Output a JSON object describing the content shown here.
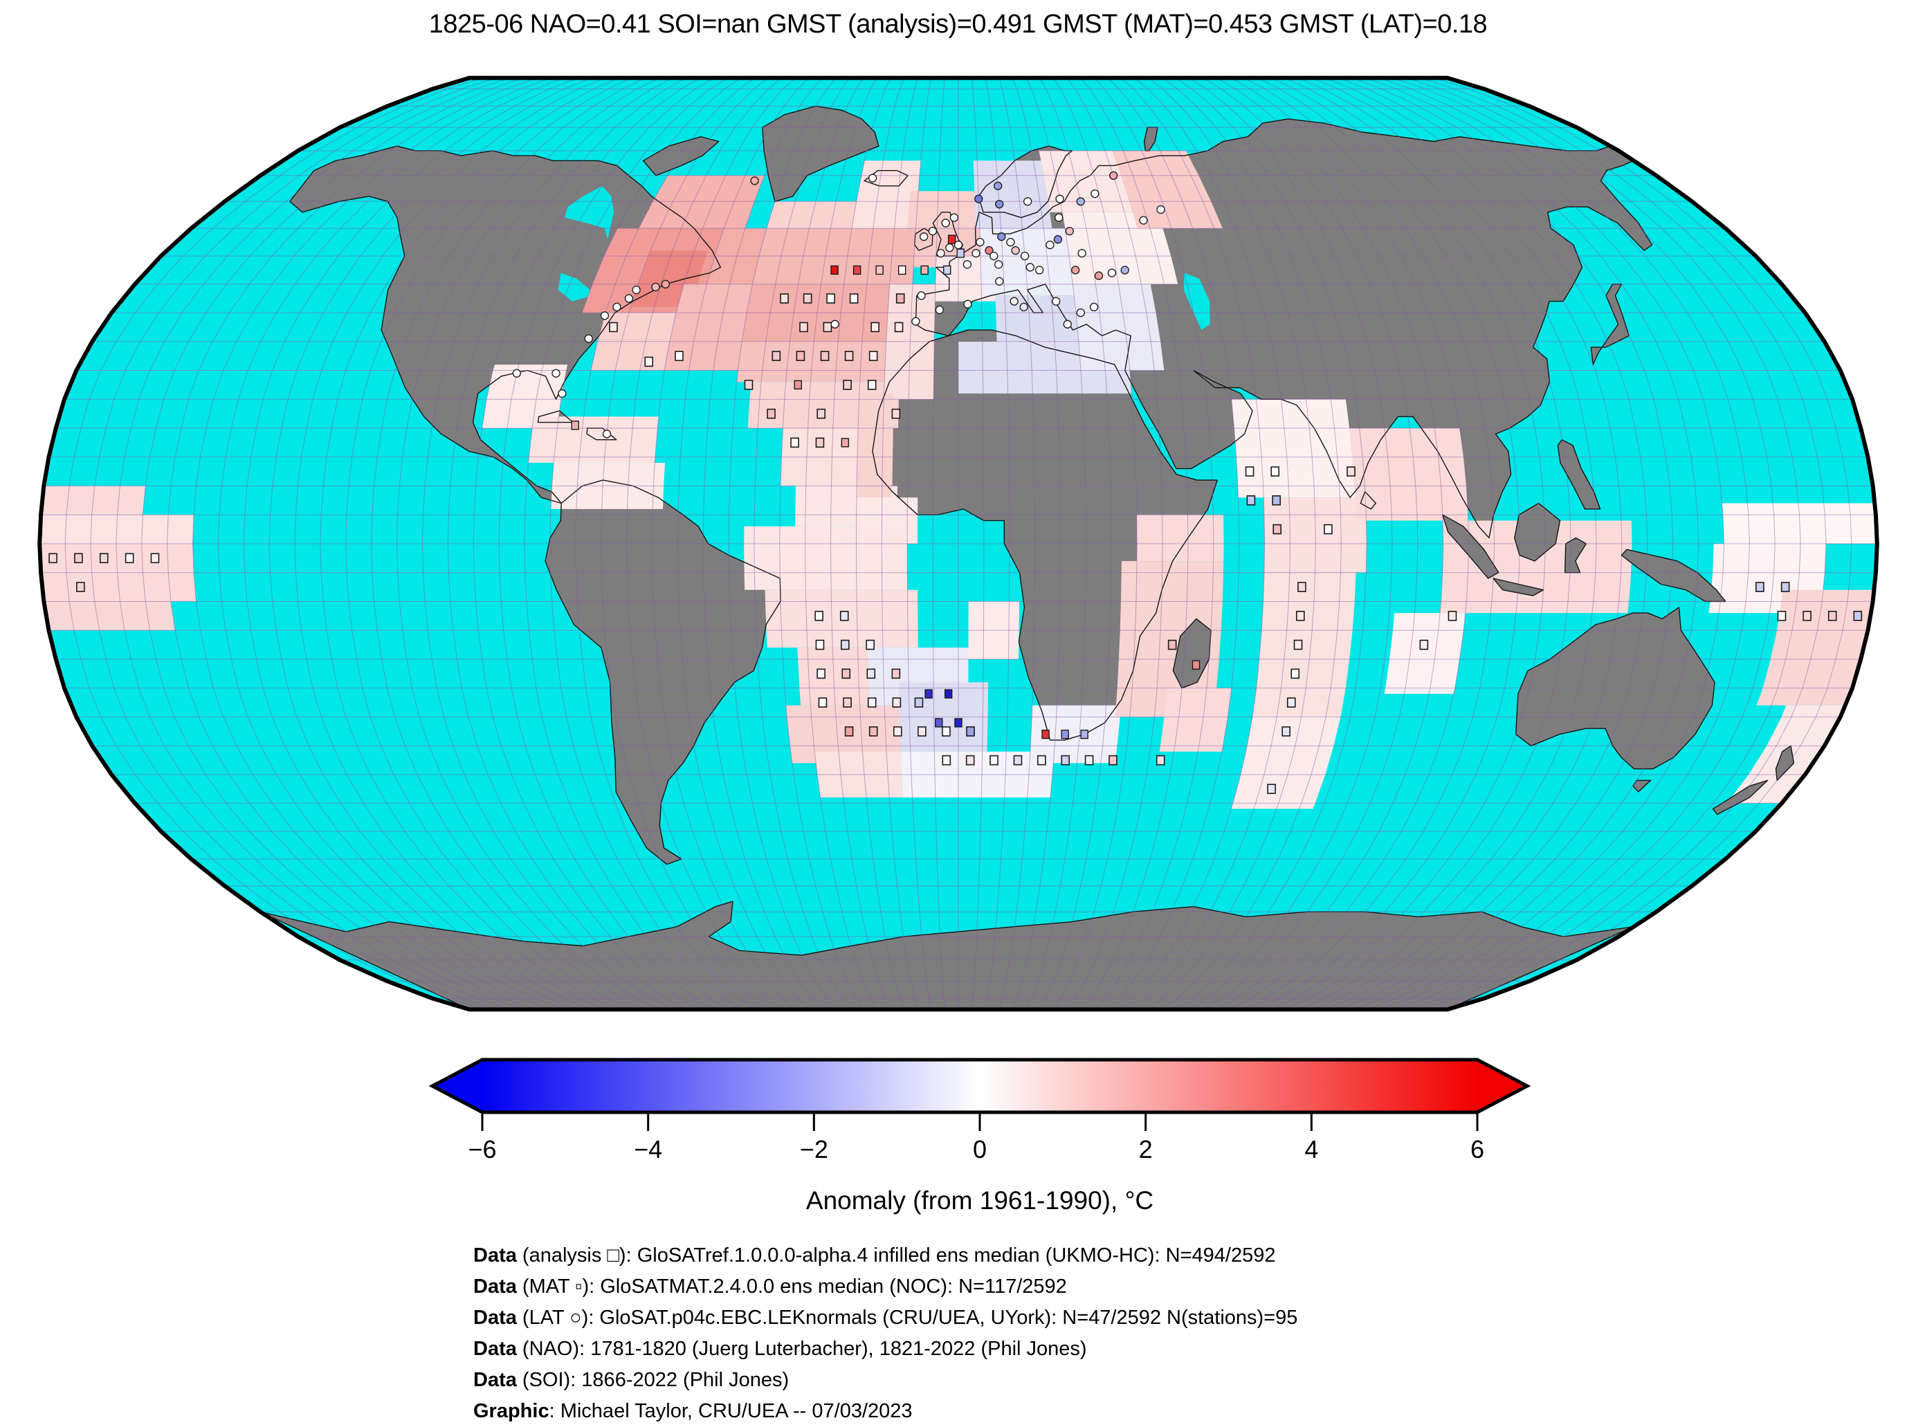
{
  "title": "1825-06 NAO=0.41 SOI=nan GMST (analysis)=0.491 GMST (MAT)=0.453 GMST (LAT)=0.18",
  "colorbar": {
    "label": "Anomaly (from 1961-1990), °C",
    "tick_labels": [
      "−6",
      "−4",
      "−2",
      "0",
      "2",
      "4",
      "6"
    ],
    "tick_values": [
      -6,
      -4,
      -2,
      0,
      2,
      4,
      6
    ],
    "min": -6,
    "max": 6,
    "left_color": "#0000f2",
    "mid_color": "#ffffff",
    "right_color": "#f20000"
  },
  "captions": [
    {
      "prefix": "Data",
      "text": " (analysis □): GloSATref.1.0.0.0-alpha.4 infilled ens median (UKMO-HC): N=494/2592"
    },
    {
      "prefix": "Data",
      "text": " (MAT ▫): GloSATMAT.2.4.0.0 ens median (NOC): N=117/2592"
    },
    {
      "prefix": "Data",
      "text": " (LAT ○): GloSAT.p04c.EBC.LEKnormals (CRU/UEA, UYork): N=47/2592 N(stations)=95"
    },
    {
      "prefix": "Data",
      "text": " (NAO): 1781-1820 (Juerg Luterbacher), 1821-2022 (Phil Jones)"
    },
    {
      "prefix": "Data",
      "text": " (SOI): 1866-2022 (Phil Jones)"
    },
    {
      "prefix": "Graphic",
      "text": ": Michael Taylor, CRU/UEA -- 07/03/2023"
    }
  ],
  "map": {
    "projection": "robinson",
    "grid_resolution_deg": 5,
    "colors": {
      "ocean": "#00e7e7",
      "land": "#7d7d7d",
      "coast": "#141414",
      "border": "#000000",
      "graticule": "#8a55aa"
    },
    "cells": [
      [
        -75,
        55,
        -50,
        65,
        "#f4b3af"
      ],
      [
        -80,
        40,
        -55,
        55,
        "#f09d98"
      ],
      [
        -70,
        41,
        -57,
        51,
        "#ec8781"
      ],
      [
        -75,
        30,
        -60,
        40,
        "#f9d2cf"
      ],
      [
        -60,
        30,
        -45,
        45,
        "#f5bebb"
      ],
      [
        -55,
        45,
        -45,
        55,
        "#f3aeaa"
      ],
      [
        -45,
        45,
        -10,
        55,
        "#f4bab6"
      ],
      [
        -45,
        55,
        -25,
        60,
        "#f8d3d0"
      ],
      [
        -45,
        35,
        -10,
        45,
        "#f2b0ad"
      ],
      [
        -45,
        28,
        -10,
        35,
        "#f5c3c0"
      ],
      [
        -42,
        20,
        -12,
        28,
        "#f8d6d3"
      ],
      [
        -35,
        10,
        -15,
        20,
        "#fae2df"
      ],
      [
        -32,
        3,
        -12,
        10,
        "#fbe8e6"
      ],
      [
        -95,
        20,
        -80,
        31,
        "#fcebe9"
      ],
      [
        -85,
        14,
        -60,
        22,
        "#fae3e1"
      ],
      [
        -80,
        6,
        -58,
        14,
        "#fbeae8"
      ],
      [
        -15,
        25,
        -5,
        45,
        "#f9dfdd"
      ],
      [
        -25,
        55,
        -10,
        68,
        "#fbe3e1"
      ],
      [
        -10,
        48,
        5,
        58,
        "#f6cac7"
      ],
      [
        -12,
        55,
        4,
        62,
        "#f8d0cd"
      ],
      [
        4,
        55,
        22,
        68,
        "#dcddf1"
      ],
      [
        -5,
        42,
        8,
        50,
        "#fae9e8"
      ],
      [
        5,
        43,
        28,
        55,
        "#edeff8"
      ],
      [
        8,
        30,
        27,
        43,
        "#dbddf1"
      ],
      [
        0,
        26,
        35,
        35,
        "#dfe0f2"
      ],
      [
        25,
        30,
        42,
        45,
        "#e9eaf6"
      ],
      [
        25,
        45,
        48,
        58,
        "#fcf0ee"
      ],
      [
        22,
        58,
        42,
        70,
        "#fbe7e5"
      ],
      [
        42,
        55,
        62,
        70,
        "#f7ccc9"
      ],
      [
        -20,
        8,
        -13,
        26,
        "#f8d4d1"
      ],
      [
        -20,
        0,
        -8,
        8,
        "#fbe9e7"
      ],
      [
        -42,
        -8,
        -10,
        3,
        "#fbe7e5"
      ],
      [
        -38,
        -18,
        -8,
        -8,
        "#fae0de"
      ],
      [
        -32,
        -28,
        -18,
        -18,
        "#f9dbd9"
      ],
      [
        -18,
        -28,
        2,
        -18,
        "#e9eaf7"
      ],
      [
        -12,
        -36,
        6,
        -24,
        "#dddef2"
      ],
      [
        -35,
        -38,
        -12,
        -28,
        "#f7d4d2"
      ],
      [
        -30,
        -44,
        -12,
        -36,
        "#fae2e0"
      ],
      [
        -12,
        -44,
        20,
        -36,
        "#f4f3fa"
      ],
      [
        15,
        -38,
        33,
        -28,
        "#f1f0f9"
      ],
      [
        32,
        -30,
        52,
        -3,
        "#f8d5d2"
      ],
      [
        42,
        -36,
        55,
        -25,
        "#f9dcda"
      ],
      [
        2,
        -20,
        12,
        -10,
        "#fcebe9"
      ],
      [
        35,
        -3,
        52,
        5,
        "#f9dcda"
      ],
      [
        55,
        8,
        78,
        25,
        "#fdf1f0"
      ],
      [
        60,
        -5,
        80,
        8,
        "#fae0de"
      ],
      [
        78,
        4,
        100,
        20,
        "#f9dbd9"
      ],
      [
        60,
        -30,
        78,
        -5,
        "#fae2e0"
      ],
      [
        60,
        -46,
        78,
        -30,
        "#fbeceb"
      ],
      [
        95,
        -12,
        132,
        4,
        "#f9dcda"
      ],
      [
        86,
        -26,
        100,
        -12,
        "#fdf2f1"
      ],
      [
        150,
        0,
        180,
        7,
        "#fdf6f5"
      ],
      [
        148,
        -12,
        170,
        0,
        "#fdf3f2"
      ],
      [
        162,
        -28,
        180,
        -8,
        "#f8d6d4"
      ],
      [
        168,
        -45,
        180,
        -28,
        "#fbe9e8"
      ],
      [
        -180,
        5,
        -160,
        10,
        "#f9dcda"
      ],
      [
        -180,
        0,
        -150,
        5,
        "#fbe4e2"
      ],
      [
        -180,
        -10,
        -150,
        0,
        "#f9dcda"
      ],
      [
        -180,
        -15,
        -155,
        -10,
        "#f8d8d6"
      ]
    ],
    "markers": [
      [
        "m",
        -27.5,
        47.5,
        "#e01414"
      ],
      [
        "m",
        -22.5,
        47.5,
        "#e64646"
      ],
      [
        "m",
        -17.5,
        47.5,
        "#f5c8c8"
      ],
      [
        "m",
        -12.5,
        47.5,
        "#fdf3f3"
      ],
      [
        "m",
        -7.5,
        47.5,
        "#f2b4b4"
      ],
      [
        "m",
        -2.5,
        47.5,
        "#ccd2f0"
      ],
      [
        "m",
        -32.5,
        27.5,
        "#ee9292"
      ],
      [
        "m",
        -22.5,
        17.5,
        "#f0a6a6"
      ],
      [
        "m",
        -76.5,
        20.5,
        "#f2b0b0"
      ],
      [
        "m",
        -1.5,
        53,
        "#e62424"
      ],
      [
        "m",
        0.5,
        50.5,
        "#c6cef0"
      ],
      [
        "m",
        -6,
        -26,
        "#2c2ccd"
      ],
      [
        "m",
        -2,
        -26,
        "#1e1ec8"
      ],
      [
        "m",
        -4,
        -31,
        "#5c5cd8"
      ],
      [
        "m",
        0,
        -31,
        "#2626ca"
      ],
      [
        "m",
        18,
        -33,
        "#e93030"
      ],
      [
        "m",
        22,
        -33,
        "#9098e4"
      ],
      [
        "m",
        26,
        -33,
        "#acb4e9"
      ],
      [
        "m",
        47.5,
        -21,
        "#ee8e8e"
      ],
      [
        "a",
        -37.5,
        42.5,
        "#f6e3e3"
      ],
      [
        "a",
        -32.5,
        42.5,
        "#f3d3d3"
      ],
      [
        "a",
        -27.5,
        42.5,
        "#ffffff"
      ],
      [
        "a",
        -22.5,
        42.5,
        "#fdf8f8"
      ],
      [
        "a",
        -12.5,
        42.5,
        "#f2b2b2"
      ],
      [
        "a",
        -32.5,
        37.5,
        "#f8dcdc"
      ],
      [
        "a",
        -27.5,
        37.5,
        "#f9e0e0"
      ],
      [
        "a",
        -17.5,
        37.5,
        "#fcecec"
      ],
      [
        "a",
        -12.5,
        37.5,
        "#fae7e7"
      ],
      [
        "a",
        -37.5,
        32.5,
        "#f4c6c6"
      ],
      [
        "a",
        -32.5,
        32.5,
        "#f2baba"
      ],
      [
        "a",
        -27.5,
        32.5,
        "#f4c6c6"
      ],
      [
        "a",
        -22.5,
        32.5,
        "#f6d2d2"
      ],
      [
        "a",
        -17.5,
        32.5,
        "#fbf1f1"
      ],
      [
        "a",
        -42.5,
        27.5,
        "#f6d6d6"
      ],
      [
        "a",
        -22.5,
        27.5,
        "#f6d0d0"
      ],
      [
        "a",
        -17.5,
        27.5,
        "#f5f5fc"
      ],
      [
        "a",
        -37.5,
        22.5,
        "#f3c0c0"
      ],
      [
        "a",
        -27.5,
        22.5,
        "#f7d8d8"
      ],
      [
        "a",
        -12.5,
        22.5,
        "#f8dcdc"
      ],
      [
        "a",
        -32.5,
        17.5,
        "#ffffff"
      ],
      [
        "a",
        -27.5,
        17.5,
        "#f5cccc"
      ],
      [
        "a",
        -57.5,
        32.5,
        "#ffffff"
      ],
      [
        "a",
        -63.5,
        31.5,
        "#fdf6f6"
      ],
      [
        "a",
        -72.5,
        37.5,
        "#fbeaea"
      ],
      [
        "a",
        -27.5,
        -12.5,
        "#fbfbff"
      ],
      [
        "a",
        -22.5,
        -12.5,
        "#e6e6f7"
      ],
      [
        "a",
        -27.5,
        -17.5,
        "#ffffff"
      ],
      [
        "a",
        -22.5,
        -17.5,
        "#dedef3"
      ],
      [
        "a",
        -17.5,
        -17.5,
        "#f6f6fd"
      ],
      [
        "a",
        -27.5,
        -22.5,
        "#f8f8fd"
      ],
      [
        "a",
        -22.5,
        -22.5,
        "#f4c2c2"
      ],
      [
        "a",
        -17.5,
        -22.5,
        "#e6e6f6"
      ],
      [
        "a",
        -12.5,
        -22.5,
        "#f7caca"
      ],
      [
        "a",
        -27.5,
        -27.5,
        "#ffffff"
      ],
      [
        "a",
        -22.5,
        -27.5,
        "#f8d2d2"
      ],
      [
        "a",
        -17.5,
        -27.5,
        "#f2f2fb"
      ],
      [
        "a",
        -12.5,
        -27.5,
        "#fbeaea"
      ],
      [
        "a",
        -8,
        -27.5,
        "#c6cbee"
      ],
      [
        "a",
        -22.5,
        -32.5,
        "#f0a2a2"
      ],
      [
        "a",
        -17.5,
        -32.5,
        "#f3baba"
      ],
      [
        "a",
        -12.5,
        -32.5,
        "#fcf0f0"
      ],
      [
        "a",
        -7.5,
        -32.5,
        "#fbe8e8"
      ],
      [
        "a",
        -2.5,
        -32.5,
        "#ffffff"
      ],
      [
        "a",
        2.5,
        -32.5,
        "#9aa2e2"
      ],
      [
        "a",
        -2.5,
        -37.5,
        "#ffffff"
      ],
      [
        "a",
        2.5,
        -37.5,
        "#fae4e4"
      ],
      [
        "a",
        7.5,
        -37.5,
        "#ffffff"
      ],
      [
        "a",
        12.5,
        -37.5,
        "#dde1f4"
      ],
      [
        "a",
        17.5,
        -37.5,
        "#f5f5fc"
      ],
      [
        "a",
        22.5,
        -37.5,
        "#cbd1f0"
      ],
      [
        "a",
        27.5,
        -37.5,
        "#f1f1fa"
      ],
      [
        "a",
        32.5,
        -37.5,
        "#f5c6c6"
      ],
      [
        "a",
        42.5,
        -37.5,
        "#fbe2e2"
      ],
      [
        "a",
        42.5,
        -17.5,
        "#f5bcbc"
      ],
      [
        "a",
        57.5,
        12.5,
        "#fbfbfe"
      ],
      [
        "a",
        62.5,
        12.5,
        "#ffffff"
      ],
      [
        "a",
        77.5,
        12.5,
        "#f9dede"
      ],
      [
        "a",
        57.5,
        7.5,
        "#c2c8ee"
      ],
      [
        "a",
        62.5,
        7.5,
        "#b4bcea"
      ],
      [
        "a",
        62.5,
        2.5,
        "#f3bebe"
      ],
      [
        "a",
        72.5,
        2.5,
        "#f6f6fd"
      ],
      [
        "a",
        67.5,
        -7.5,
        "#f9dada"
      ],
      [
        "a",
        67.5,
        -12.5,
        "#fbe6e6"
      ],
      [
        "a",
        67.5,
        -17.5,
        "#fcecec"
      ],
      [
        "a",
        67.5,
        -22.5,
        "#f7f7fd"
      ],
      [
        "a",
        67.5,
        -27.5,
        "#eaecf8"
      ],
      [
        "a",
        67.5,
        -32.5,
        "#e0e3f5"
      ],
      [
        "a",
        67.5,
        -42.5,
        "#e4e7f6"
      ],
      [
        "a",
        97.5,
        -12.5,
        "#fbe8e8"
      ],
      [
        "a",
        92.5,
        -17.5,
        "#fcefef"
      ],
      [
        "a",
        157.5,
        -7.5,
        "#caceef"
      ],
      [
        "a",
        162.5,
        -7.5,
        "#c6cbee"
      ],
      [
        "a",
        162.5,
        -12.5,
        "#fafafe"
      ],
      [
        "a",
        167.5,
        -12.5,
        "#f7d8d8"
      ],
      [
        "a",
        172.5,
        -12.5,
        "#f5cece"
      ],
      [
        "a",
        177.5,
        -12.5,
        "#c6ccee"
      ],
      [
        "a",
        -177.5,
        -2.5,
        "#f7d6d6"
      ],
      [
        "a",
        -172.5,
        -2.5,
        "#f5cccc"
      ],
      [
        "a",
        -167.5,
        -2.5,
        "#f7d8d8"
      ],
      [
        "a",
        -162.5,
        -2.5,
        "#fafafe"
      ],
      [
        "a",
        -157.5,
        -2.5,
        "#fcf2f2"
      ],
      [
        "a",
        -172.5,
        -7.5,
        "#f6d2d2"
      ],
      [
        "l",
        -8,
        53.5,
        "#ffffff"
      ],
      [
        "l",
        -6,
        54.5,
        "#ffffff"
      ],
      [
        "l",
        -4,
        50.5,
        "#ffffff"
      ],
      [
        "l",
        -2,
        51.5,
        "#ffffff"
      ],
      [
        "l",
        0,
        52,
        "#ffffff"
      ],
      [
        "l",
        -3,
        56,
        "#ffffff"
      ],
      [
        "l",
        -1,
        57,
        "#ffffff"
      ],
      [
        "l",
        2,
        48.5,
        "#ffffff"
      ],
      [
        "l",
        4,
        50.5,
        "#ffffff"
      ],
      [
        "l",
        5,
        52.5,
        "#ffffff"
      ],
      [
        "l",
        7,
        51,
        "#ee7e7e"
      ],
      [
        "l",
        8,
        50,
        "#ffffff"
      ],
      [
        "l",
        9,
        48.5,
        "#ffffff"
      ],
      [
        "l",
        10,
        53.5,
        "#8a92e0"
      ],
      [
        "l",
        12,
        52.5,
        "#ffffff"
      ],
      [
        "l",
        13,
        51,
        "#f6c6c6"
      ],
      [
        "l",
        15,
        50,
        "#ffffff"
      ],
      [
        "l",
        16,
        48,
        "#ffffff"
      ],
      [
        "l",
        18,
        47.5,
        "#ffffff"
      ],
      [
        "l",
        21,
        52,
        "#ffffff"
      ],
      [
        "l",
        23,
        53,
        "#8a92e0"
      ],
      [
        "l",
        10,
        59.5,
        "#8a92e0"
      ],
      [
        "l",
        5,
        60.5,
        "#707ad8"
      ],
      [
        "l",
        10,
        63,
        "#98a0e4"
      ],
      [
        "l",
        17,
        60,
        "#ffffff"
      ],
      [
        "l",
        25,
        60.5,
        "#ffffff"
      ],
      [
        "l",
        30,
        60,
        "#aab2e8"
      ],
      [
        "l",
        24,
        57,
        "#ffffff"
      ],
      [
        "l",
        26,
        54.5,
        "#f6bcbc"
      ],
      [
        "l",
        28,
        50.5,
        "#ffffff"
      ],
      [
        "l",
        26,
        47.5,
        "#f2a2a2"
      ],
      [
        "l",
        34,
        47,
        "#ffffff"
      ],
      [
        "l",
        37,
        47.5,
        "#aab2e8"
      ],
      [
        "l",
        31,
        46.5,
        "#f2a0a0"
      ],
      [
        "l",
        9,
        45.5,
        "#ffffff"
      ],
      [
        "l",
        12,
        42,
        "#f8f0f0"
      ],
      [
        "l",
        14,
        41,
        "#e8e8f8"
      ],
      [
        "l",
        -4,
        40.5,
        "#ffffff"
      ],
      [
        "l",
        -9,
        38.5,
        "#ffffff"
      ],
      [
        "l",
        2,
        41.5,
        "#ffffff"
      ],
      [
        "l",
        -8,
        43,
        "#ffffff"
      ],
      [
        "l",
        21,
        42,
        "#ffffff"
      ],
      [
        "l",
        23,
        38,
        "#ffffff"
      ],
      [
        "l",
        26,
        40,
        "#eeeefa"
      ],
      [
        "l",
        29,
        41,
        "#ffffff"
      ],
      [
        "l",
        40,
        65,
        "#f4a8a8"
      ],
      [
        "l",
        34,
        61.5,
        "#ffffff"
      ],
      [
        "l",
        44,
        56.5,
        "#ffffff"
      ],
      [
        "l",
        49,
        58.5,
        "#ffffff"
      ],
      [
        "l",
        -75,
        39.5,
        "#ffffff"
      ],
      [
        "l",
        -73,
        41,
        "#ffffff"
      ],
      [
        "l",
        -71,
        42.5,
        "#f4f4ff"
      ],
      [
        "l",
        -70,
        44,
        "#ffffff"
      ],
      [
        "l",
        -77,
        35.5,
        "#ffffff"
      ],
      [
        "l",
        -80,
        26,
        "#ffffff"
      ],
      [
        "l",
        -82,
        29.5,
        "#ffffff"
      ],
      [
        "l",
        -90,
        29.5,
        "#ffffff"
      ],
      [
        "l",
        -64,
        45,
        "#f2a4a4"
      ],
      [
        "l",
        -66,
        44.5,
        "#f6bcbc"
      ],
      [
        "l",
        -52,
        64,
        "#f2b0b0"
      ],
      [
        "l",
        -22,
        64.5,
        "#ffffff"
      ],
      [
        "l",
        -70,
        19,
        "#ffffff"
      ],
      [
        "l",
        -26,
        38,
        "#ffffff"
      ]
    ]
  }
}
